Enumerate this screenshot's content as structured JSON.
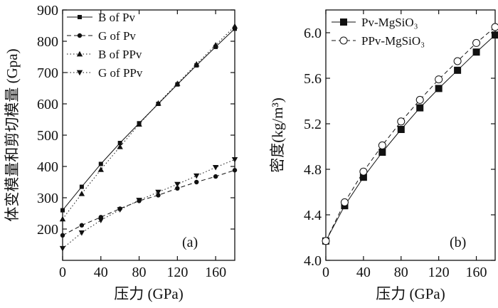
{
  "chart_data": [
    {
      "type": "line",
      "panel_label": "(a)",
      "xlabel": "压力 (GPa)",
      "ylabel": "体变模量和剪切模量 (Gpa)",
      "xlim": [
        0,
        180
      ],
      "ylim": [
        100,
        900
      ],
      "xticks": [
        "0",
        "40",
        "80",
        "120",
        "160"
      ],
      "yticks": [
        "200",
        "300",
        "400",
        "500",
        "600",
        "700",
        "800",
        "900"
      ],
      "xtick_values": [
        0,
        40,
        80,
        120,
        160
      ],
      "ytick_values": [
        200,
        300,
        400,
        500,
        600,
        700,
        800,
        900
      ],
      "legend_position": "top-left",
      "series": [
        {
          "name": "B of Pv",
          "marker": "square",
          "line": "solid",
          "x": [
            0,
            20,
            40,
            60,
            80,
            100,
            120,
            140,
            160,
            180
          ],
          "y": [
            260,
            335,
            408,
            475,
            538,
            600,
            662,
            723,
            782,
            840
          ]
        },
        {
          "name": "G of Pv",
          "marker": "circle",
          "line": "dashed",
          "x": [
            0,
            20,
            40,
            60,
            80,
            100,
            120,
            140,
            160,
            180
          ],
          "y": [
            180,
            212,
            238,
            265,
            290,
            308,
            330,
            350,
            368,
            388
          ]
        },
        {
          "name": "B of PPv",
          "marker": "triangle-up",
          "line": "dotted",
          "x": [
            0,
            20,
            40,
            60,
            80,
            100,
            120,
            140,
            160,
            180
          ],
          "y": [
            232,
            313,
            390,
            463,
            535,
            602,
            665,
            727,
            788,
            848
          ]
        },
        {
          "name": "G of PPv",
          "marker": "triangle-down",
          "line": "dotted",
          "x": [
            0,
            20,
            40,
            60,
            80,
            100,
            120,
            140,
            160,
            180
          ],
          "y": [
            138,
            188,
            228,
            262,
            292,
            318,
            343,
            370,
            397,
            422
          ]
        }
      ]
    },
    {
      "type": "line",
      "panel_label": "(b)",
      "xlabel": "压力 (GPa)",
      "ylabel": "密度(kg/m³)",
      "xlim": [
        0,
        180
      ],
      "ylim": [
        4.0,
        6.2
      ],
      "xticks": [
        "0",
        "40",
        "80",
        "120",
        "160"
      ],
      "yticks": [
        "4.0",
        "4.4",
        "4.8",
        "5.2",
        "5.6",
        "6.0"
      ],
      "xtick_values": [
        0,
        40,
        80,
        120,
        160
      ],
      "ytick_values": [
        4.0,
        4.4,
        4.8,
        5.2,
        5.6,
        6.0
      ],
      "legend_position": "top-left",
      "series": [
        {
          "name": "Pv-MgSiO₃",
          "marker": "square-filled",
          "line": "solid",
          "x": [
            0,
            20,
            40,
            60,
            80,
            100,
            120,
            140,
            160,
            180
          ],
          "y": [
            4.17,
            4.48,
            4.73,
            4.95,
            5.15,
            5.34,
            5.51,
            5.67,
            5.83,
            5.98
          ]
        },
        {
          "name": "PPv-MgSiO₃",
          "marker": "circle-open",
          "line": "dashed",
          "x": [
            0,
            20,
            40,
            60,
            80,
            100,
            120,
            140,
            160,
            180
          ],
          "y": [
            4.17,
            4.51,
            4.78,
            5.01,
            5.22,
            5.41,
            5.59,
            5.75,
            5.91,
            6.05
          ]
        }
      ]
    }
  ]
}
